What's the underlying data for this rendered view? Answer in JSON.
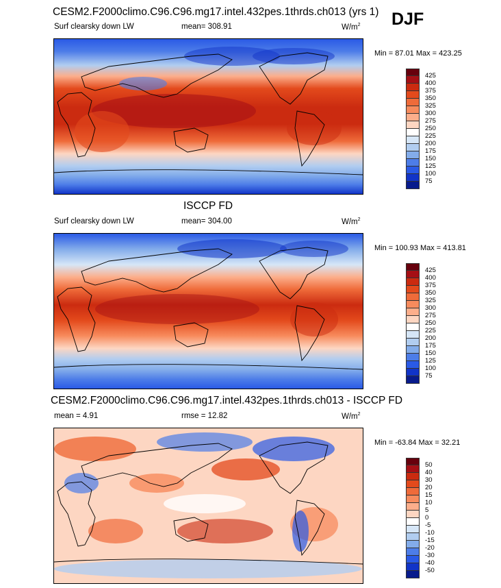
{
  "season": "DJF",
  "panel1": {
    "title": "CESM2.F2000climo.C96.C96.mg17.intel.432pes.1thrds.ch013 (yrs 1)",
    "variable": "Surf clearsky down LW",
    "stat": "mean= 308.91",
    "units_base": "W/m",
    "units_exp": "2",
    "minmax": "Min =  87.01 Max = 423.25"
  },
  "panel2": {
    "title": "ISCCP FD",
    "variable": "Surf clearsky down LW",
    "stat": "mean= 304.00",
    "units_base": "W/m",
    "units_exp": "2",
    "minmax": "Min = 100.93 Max = 413.81"
  },
  "panel3": {
    "title": "CESM2.F2000climo.C96.C96.mg17.intel.432pes.1thrds.ch013 - ISCCP FD",
    "stat1": "mean =   4.91",
    "stat2": "rmse =  12.82",
    "units_base": "W/m",
    "units_exp": "2",
    "minmax": "Min = -63.84 Max =  32.21"
  },
  "colorbar_abs": {
    "labels": [
      "425",
      "400",
      "375",
      "350",
      "325",
      "300",
      "275",
      "250",
      "225",
      "200",
      "175",
      "150",
      "125",
      "100",
      "75"
    ],
    "colors": [
      "#67000d",
      "#a50f15",
      "#cb2b10",
      "#e34a1c",
      "#ef6b3a",
      "#f78b5d",
      "#fcae8b",
      "#fdd6c2",
      "#ffffff",
      "#d6e6f7",
      "#b1cdf0",
      "#83acea",
      "#4d7de8",
      "#2a5ae6",
      "#1134c8",
      "#081b8c"
    ]
  },
  "colorbar_diff": {
    "labels": [
      "50",
      "40",
      "30",
      "20",
      "15",
      "10",
      "5",
      "0",
      "-5",
      "-10",
      "-15",
      "-20",
      "-30",
      "-40",
      "-50"
    ],
    "colors": [
      "#67000d",
      "#a50f15",
      "#cb2b10",
      "#e34a1c",
      "#ef6b3a",
      "#f78b5d",
      "#fcae8b",
      "#fdd6c2",
      "#ffffff",
      "#d6e6f7",
      "#b1cdf0",
      "#83acea",
      "#4d7de8",
      "#2a5ae6",
      "#1134c8",
      "#081b8c"
    ]
  }
}
